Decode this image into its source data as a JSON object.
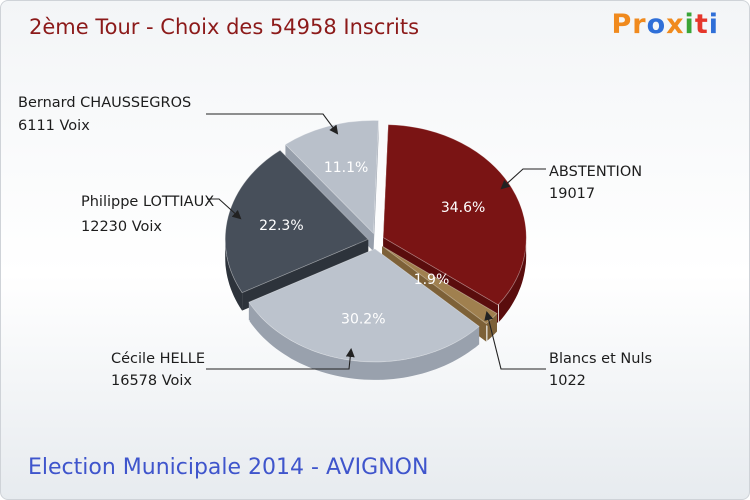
{
  "header": {
    "title": "2ème Tour - Choix des 54958 Inscrits",
    "logo": {
      "letters": [
        "P",
        "r",
        "o",
        "x",
        "i",
        "t",
        "i"
      ],
      "colors": [
        "#f08a1e",
        "#f08a1e",
        "#2f6fd8",
        "#f08a1e",
        "#3aa537",
        "#e5362b",
        "#2f6fd8"
      ]
    }
  },
  "footer": {
    "subtitle": "Election Municipale 2014 - AVIGNON"
  },
  "chart_data": {
    "type": "pie",
    "total_label": "54958 Inscrits",
    "slices": [
      {
        "name": "ABSTENTION",
        "value": 19017,
        "percent": 34.6,
        "pct_label": "34.6%",
        "value_label": "19017",
        "color": "#7a1414",
        "side_color": "#5a0d0d",
        "label_color": "#ffffff"
      },
      {
        "name": "Blancs et Nuls",
        "value": 1022,
        "percent": 1.9,
        "pct_label": "1.9%",
        "value_label": "1022",
        "color": "#a0804f",
        "side_color": "#7d6138",
        "label_color": "#ffffff"
      },
      {
        "name": "Cécile HELLE",
        "value": 16578,
        "percent": 30.2,
        "pct_label": "30.2%",
        "value_label": "16578 Voix",
        "color": "#bcc3cd",
        "side_color": "#99a1ad",
        "label_color": "#ffffff"
      },
      {
        "name": "Philippe LOTTIAUX",
        "value": 12230,
        "percent": 22.3,
        "pct_label": "22.3%",
        "value_label": "12230 Voix",
        "color": "#474f5a",
        "side_color": "#2d333b",
        "label_color": "#ffffff"
      },
      {
        "name": "Bernard CHAUSSEGROS",
        "value": 6111,
        "percent": 11.1,
        "pct_label": "11.1%",
        "value_label": "6111 Voix",
        "color": "#b9c0ca",
        "side_color": "#979fab",
        "label_color": "#ffffff"
      }
    ]
  }
}
